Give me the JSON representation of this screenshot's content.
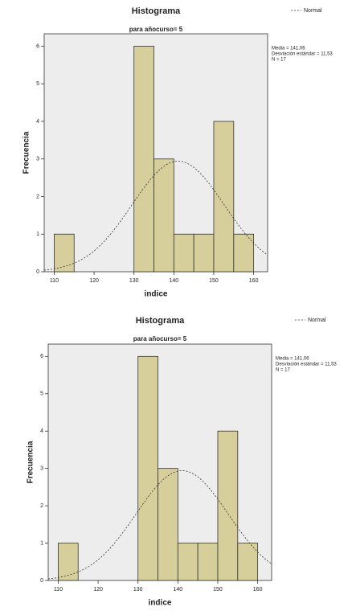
{
  "chart_data": [
    {
      "type": "histogram",
      "title": "Histograma",
      "subtitle": "para añocurso= 5",
      "x_label": "indice",
      "y_label": "Frecuencia",
      "bins": [
        110,
        115,
        120,
        125,
        130,
        135,
        140,
        145,
        150,
        155,
        160
      ],
      "values": [
        1,
        0,
        0,
        0,
        6,
        3,
        1,
        1,
        4,
        1
      ],
      "color": "#d6cf9c",
      "xlim": [
        107.5,
        163.5
      ],
      "xticks": [
        110,
        120,
        130,
        140,
        150,
        160
      ],
      "ylim": [
        0,
        6.33
      ],
      "yticks": [
        0,
        1,
        2,
        3,
        4,
        5,
        6
      ],
      "normal": {
        "name": "Normal",
        "mean": 141.06,
        "std": 11.53,
        "n": 17,
        "labels": [
          "Media = 141,06",
          "Desviación estándar = 11,53",
          "N = 17"
        ]
      }
    },
    {
      "type": "histogram",
      "title": "Histograma",
      "subtitle": "para añocurso= 5",
      "x_label": "indice",
      "y_label": "Frecuencia",
      "bins": [
        110,
        115,
        120,
        125,
        130,
        135,
        140,
        145,
        150,
        155,
        160
      ],
      "values": [
        1,
        0,
        0,
        0,
        6,
        3,
        1,
        1,
        4,
        1
      ],
      "color": "#d6cf9c",
      "xlim": [
        107.5,
        163.5
      ],
      "xticks": [
        110,
        120,
        130,
        140,
        150,
        160
      ],
      "ylim": [
        0,
        6.33
      ],
      "yticks": [
        0,
        1,
        2,
        3,
        4,
        5,
        6
      ],
      "normal": {
        "name": "Normal",
        "mean": 141.06,
        "std": 11.53,
        "n": 17,
        "labels": [
          "Media = 141,06",
          "Desviación estándar = 11,53",
          "N = 17"
        ]
      }
    }
  ]
}
